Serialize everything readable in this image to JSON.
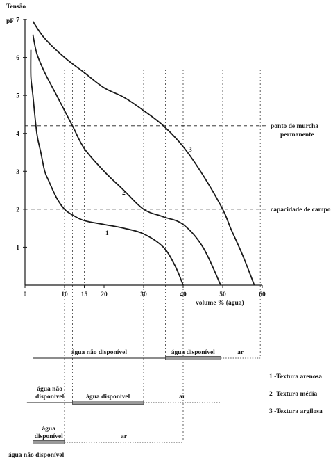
{
  "chart_data": {
    "type": "line",
    "title": "",
    "ylabel_top": "Tensão",
    "ylabel": "pF",
    "xlabel": "volume % (água)",
    "xlim": [
      0,
      60
    ],
    "ylim": [
      0,
      7
    ],
    "x_ticks": [
      0,
      10,
      15,
      20,
      30,
      40,
      50,
      60
    ],
    "x_tick_labels": [
      "0",
      "10",
      "15",
      "20",
      "30",
      "40",
      "50",
      "60"
    ],
    "y_ticks": [
      1,
      2,
      3,
      4,
      5,
      6,
      7
    ],
    "y_tick_labels": [
      "1",
      "2",
      "3",
      "4",
      "5",
      "6",
      "7"
    ],
    "series": [
      {
        "name": "1",
        "x": [
          40,
          38,
          35,
          30,
          25,
          20,
          15,
          12,
          10,
          8,
          6,
          5,
          4,
          3,
          2,
          1.5,
          1.5
        ],
        "y": [
          0,
          0.5,
          1.0,
          1.35,
          1.5,
          1.6,
          1.7,
          1.85,
          2.0,
          2.3,
          2.75,
          3.0,
          3.5,
          4.0,
          5.0,
          5.5,
          6.2
        ]
      },
      {
        "name": "2",
        "x": [
          49.5,
          45,
          40,
          35,
          30,
          25,
          20,
          15,
          12,
          8,
          5,
          3,
          2
        ],
        "y": [
          0,
          1.0,
          1.6,
          1.8,
          2.0,
          2.5,
          3.0,
          3.6,
          4.2,
          5.0,
          5.6,
          6.1,
          6.6
        ]
      },
      {
        "name": "3",
        "x": [
          58,
          55,
          52,
          50,
          45,
          40,
          35,
          30,
          25,
          20,
          15,
          10,
          5,
          2
        ],
        "y": [
          0,
          0.8,
          1.5,
          2.0,
          2.9,
          3.65,
          4.2,
          4.6,
          4.95,
          5.2,
          5.6,
          6.0,
          6.5,
          6.95
        ]
      }
    ],
    "reference_lines": [
      {
        "label": "ponto de murcha permanente",
        "label_lines": [
          "ponto de murcha",
          "permanente"
        ],
        "y": 4.2
      },
      {
        "label": "capacidade de campo",
        "y": 2.0
      }
    ],
    "vertical_guides_x": [
      2,
      10,
      12,
      15,
      30,
      35.5,
      40,
      50,
      59.5
    ],
    "water_bars": [
      {
        "texture": "3",
        "row_y": 515,
        "segments": [
          {
            "label": "água não disponível",
            "from": 2,
            "to": 35.5,
            "style": "thin"
          },
          {
            "label": "água disponível",
            "from": 35.5,
            "to": 49.5,
            "style": "thick"
          },
          {
            "label": "ar",
            "from": 49.5,
            "to": 59.5,
            "style": "dotted"
          }
        ]
      },
      {
        "texture": "2",
        "row_y": 579,
        "segments": [
          {
            "label": "água não disponível",
            "label_lines": [
              "água não",
              "disponível"
            ],
            "from": 0.5,
            "to": 12,
            "style": "thin"
          },
          {
            "label": "água disponível",
            "from": 12,
            "to": 30,
            "style": "thick"
          },
          {
            "label": "ar",
            "from": 30,
            "to": 49.5,
            "style": "dotted"
          }
        ]
      },
      {
        "texture": "1",
        "row_y": 636,
        "segments": [
          {
            "label": "água disponível",
            "label_lines": [
              "água",
              "disponível"
            ],
            "from": 2,
            "to": 10,
            "style": "thick"
          },
          {
            "label": "ar",
            "from": 10,
            "to": 40,
            "style": "dotted"
          }
        ]
      }
    ],
    "bottom_label": "água não disponível",
    "legend": [
      {
        "label": "1 -Textura arenosa"
      },
      {
        "label": "2 -Textura média"
      },
      {
        "label": "3 -Textura argilosa"
      }
    ],
    "grid": false,
    "legend_position": "bottom-right"
  },
  "colors": {
    "ink": "#1a1a1a",
    "bar_fill": "#9a9a9a",
    "background": "#ffffff"
  }
}
